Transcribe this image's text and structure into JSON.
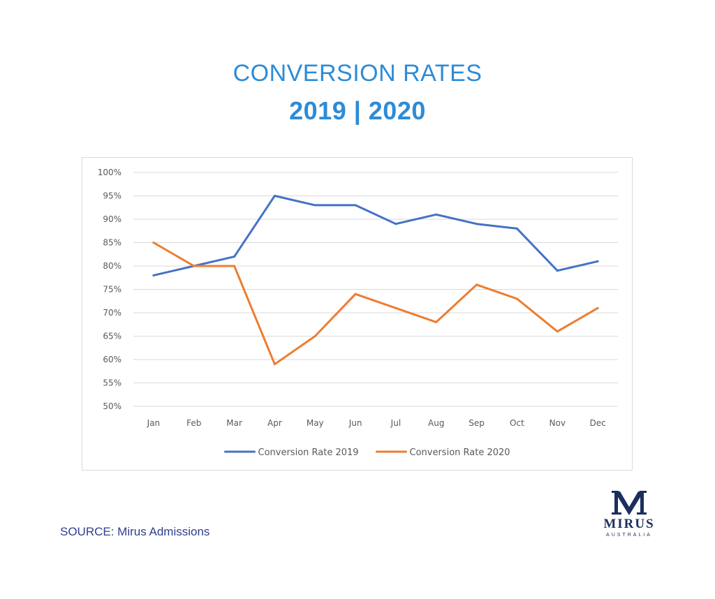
{
  "header": {
    "title_line1": "CONVERSION RATES",
    "title_line2": "2019 | 2020"
  },
  "footer": {
    "source": "SOURCE: Mirus Admissions"
  },
  "logo": {
    "word": "MIRUS",
    "sub": "AUSTRALIA"
  },
  "chart_data": {
    "type": "line",
    "categories": [
      "Jan",
      "Feb",
      "Mar",
      "Apr",
      "May",
      "Jun",
      "Jul",
      "Aug",
      "Sep",
      "Oct",
      "Nov",
      "Dec"
    ],
    "ylim": [
      50,
      100
    ],
    "ytick_step": 5,
    "ytick_suffix": "%",
    "grid": true,
    "legend_position": "bottom",
    "series": [
      {
        "name": "Conversion Rate 2019",
        "color": "#4472c4",
        "values": [
          78,
          80,
          82,
          95,
          93,
          93,
          89,
          91,
          89,
          88,
          79,
          81
        ]
      },
      {
        "name": "Conversion Rate 2020",
        "color": "#ed7d31",
        "values": [
          85,
          80,
          80,
          59,
          65,
          74,
          71,
          68,
          76,
          73,
          66,
          71
        ]
      }
    ]
  }
}
